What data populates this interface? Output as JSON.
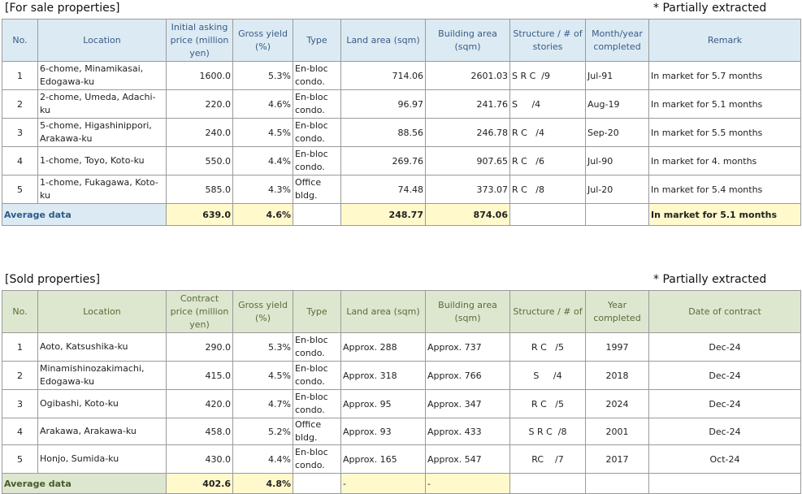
{
  "for_sale": {
    "title": "[For sale properties]",
    "note": "* Partially extracted",
    "headers": [
      "No.",
      "Location",
      "Initial asking price (million yen)",
      "Gross yield (%)",
      "Type",
      "Land area (sqm)",
      "Building area (sqm)",
      "Structure / # of stories",
      "Month/year completed",
      "Remark"
    ],
    "rows": [
      {
        "no": "1",
        "location": "6-chome, Minamikasai, Edogawa-ku",
        "price": "1600.0",
        "yield": "5.3%",
        "type": "En-bloc condo.",
        "land": "714.06",
        "building": "2601.03",
        "structure": "S R C  /9",
        "completed": "Jul-91",
        "remark": "In market for 5.7 months"
      },
      {
        "no": "2",
        "location": "2-chome, Umeda, Adachi-ku",
        "price": "220.0",
        "yield": "4.6%",
        "type": "En-bloc condo.",
        "land": "96.97",
        "building": "241.76",
        "structure": "S     /4",
        "completed": "Aug-19",
        "remark": "In market for 5.1 months"
      },
      {
        "no": "3",
        "location": "5-chome, Higashinippori, Arakawa-ku",
        "price": "240.0",
        "yield": "4.5%",
        "type": "En-bloc condo.",
        "land": "88.56",
        "building": "246.78",
        "structure": "R C   /4",
        "completed": "Sep-20",
        "remark": "In market for 5.5 months"
      },
      {
        "no": "4",
        "location": "1-chome, Toyo, Koto-ku",
        "price": "550.0",
        "yield": "4.4%",
        "type": "En-bloc condo.",
        "land": "269.76",
        "building": "907.65",
        "structure": "R C   /6",
        "completed": "Jul-90",
        "remark": "In market for 4. months"
      },
      {
        "no": "5",
        "location": "1-chome, Fukagawa, Koto-ku",
        "price": "585.0",
        "yield": "4.3%",
        "type": "Office bldg.",
        "land": "74.48",
        "building": "373.07",
        "structure": "R C   /8",
        "completed": "Jul-20",
        "remark": "In market for 5.4 months"
      }
    ],
    "average": {
      "label": "Average data",
      "price": "639.0",
      "yield": "4.6%",
      "land": "248.77",
      "building": "874.06",
      "remark": "In market for 5.1 months"
    }
  },
  "sold": {
    "title": "[Sold properties]",
    "note": "* Partially extracted",
    "headers": [
      "No.",
      "Location",
      "Contract price (million yen)",
      "Gross yield (%)",
      "Type",
      "Land area (sqm)",
      "Building area (sqm)",
      "Structure / # of",
      "Year completed",
      "Date of contract"
    ],
    "rows": [
      {
        "no": "1",
        "location": "Aoto, Katsushika-ku",
        "price": "290.0",
        "yield": "5.3%",
        "type": "En-bloc condo.",
        "land": "Approx. 288",
        "building": "Approx. 737",
        "structure": "R C   /5",
        "completed": "1997",
        "date": "Dec-24"
      },
      {
        "no": "2",
        "location": "Minamishinozakimachi, Edogawa-ku",
        "price": "415.0",
        "yield": "4.5%",
        "type": "En-bloc condo.",
        "land": "Approx. 318",
        "building": "Approx. 766",
        "structure": "S     /4",
        "completed": "2018",
        "date": "Dec-24"
      },
      {
        "no": "3",
        "location": "Ogibashi, Koto-ku",
        "price": "420.0",
        "yield": "4.7%",
        "type": "En-bloc condo.",
        "land": "Approx. 95",
        "building": "Approx. 347",
        "structure": "R C   /5",
        "completed": "2024",
        "date": "Dec-24"
      },
      {
        "no": "4",
        "location": "Arakawa, Arakawa-ku",
        "price": "458.0",
        "yield": "5.2%",
        "type": "Office bldg.",
        "land": "Approx. 93",
        "building": "Approx. 433",
        "structure": "S R C  /8",
        "completed": "2001",
        "date": "Dec-24"
      },
      {
        "no": "5",
        "location": "Honjo, Sumida-ku",
        "price": "430.0",
        "yield": "4.4%",
        "type": "En-bloc condo.",
        "land": "Approx. 165",
        "building": "Approx. 547",
        "structure": "RC    /7",
        "completed": "2017",
        "date": "Oct-24"
      }
    ],
    "average": {
      "label": "Average data",
      "price": "402.6",
      "yield": "4.8%",
      "land": "-",
      "building": "-"
    }
  }
}
